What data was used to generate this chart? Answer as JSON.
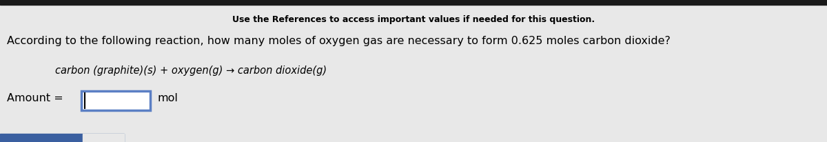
{
  "background_color": "#e8e8e8",
  "top_bar_color": "#1a1a1a",
  "top_text": "Use the References to access important values if needed for this question.",
  "question_text": "According to the following reaction, how many moles of oxygen gas are necessary to form 0.625 moles carbon dioxide?",
  "reaction_text": "carbon (graphite)(s) + oxygen(g) → carbon dioxide(g)",
  "amount_label": "Amount =",
  "amount_unit": "mol",
  "box_border_color": "#5b7fc4",
  "bottom_bar_color": "#3a5fa0",
  "fig_width": 12.0,
  "fig_height": 2.07,
  "dpi": 100
}
